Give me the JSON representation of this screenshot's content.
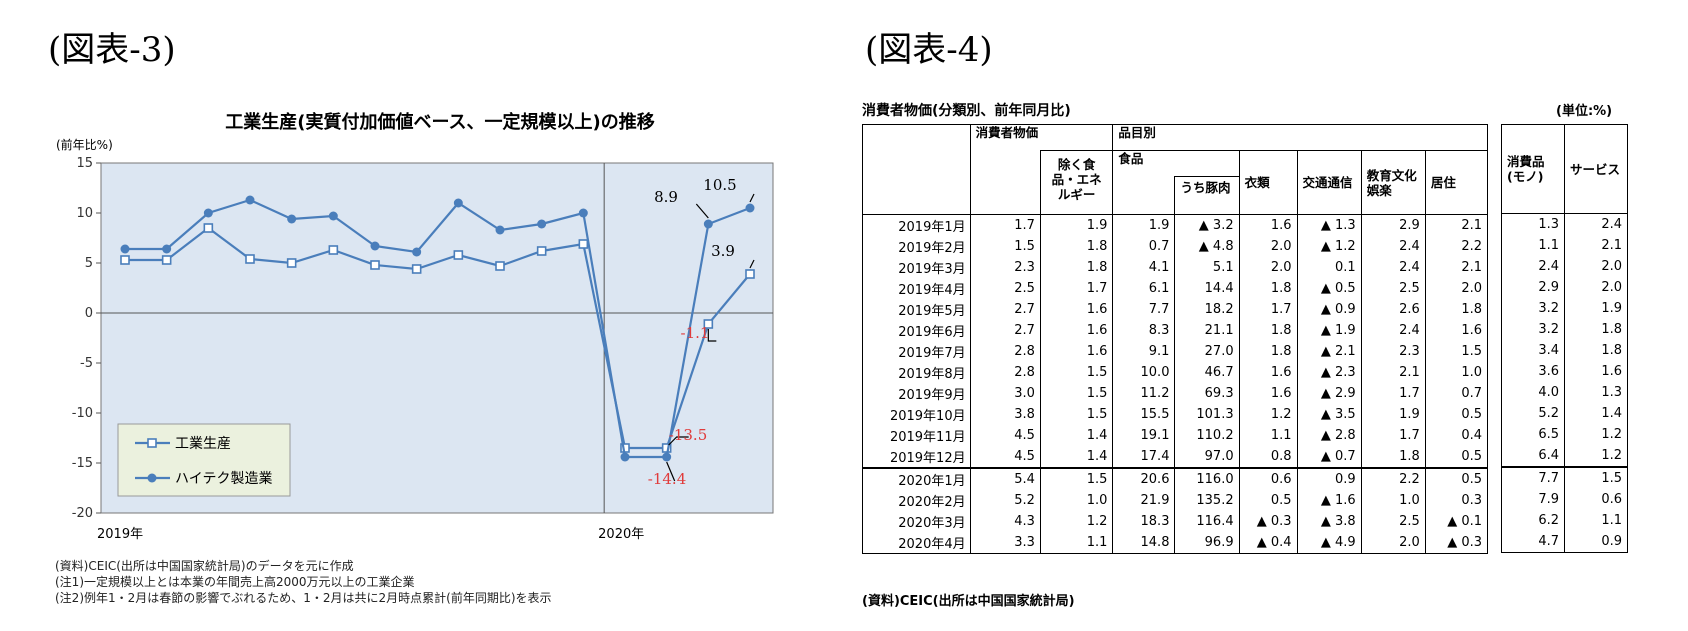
{
  "figure3": {
    "label": "(図表-3)",
    "title": "工業生産(実質付加価値ベース、一定規模以上)の推移",
    "ylabel": "(前年比%)",
    "x_year_labels": [
      "2019年",
      "2020年"
    ],
    "notes": [
      "(資料)CEIC(出所は中国国家統計局)のデータを元に作成",
      "(注1)一定規模以上とは本業の年間売上高2000万元以上の工業企業",
      "(注2)例年1・2月は春節の影響でぶれるため、1・2月は共に2月時点累計(前年同期比)を表示"
    ]
  },
  "chart_data": {
    "type": "line",
    "ylim": [
      -20,
      15
    ],
    "yticks": [
      "15",
      "10",
      "5",
      "0",
      "-5",
      "-10",
      "-15",
      "-20"
    ],
    "x": [
      "2019-01",
      "2019-02",
      "2019-03",
      "2019-04",
      "2019-05",
      "2019-06",
      "2019-07",
      "2019-08",
      "2019-09",
      "2019-10",
      "2019-11",
      "2019-12",
      "2020-01",
      "2020-02",
      "2020-03",
      "2020-04"
    ],
    "series": [
      {
        "name": "工業生産",
        "marker": "square-open",
        "color": "#4a7ebb",
        "values": [
          5.3,
          5.3,
          8.5,
          5.4,
          5.0,
          6.3,
          4.8,
          4.4,
          5.8,
          4.7,
          6.2,
          6.9,
          -13.5,
          -13.5,
          -1.1,
          3.9
        ]
      },
      {
        "name": "ハイテク製造業",
        "marker": "circle-filled",
        "color": "#4a7ebb",
        "values": [
          6.4,
          6.4,
          10.0,
          11.3,
          9.4,
          9.7,
          6.7,
          6.1,
          11.0,
          8.3,
          8.9,
          10.0,
          -14.4,
          -14.4,
          8.9,
          10.5
        ]
      }
    ],
    "annotations": [
      {
        "text": "10.5",
        "color": "#000000"
      },
      {
        "text": "8.9",
        "color": "#000000"
      },
      {
        "text": "3.9",
        "color": "#000000"
      },
      {
        "text": "-1.1",
        "color": "#e03c3c"
      },
      {
        "text": "-13.5",
        "color": "#e03c3c"
      },
      {
        "text": "-14.4",
        "color": "#e03c3c"
      }
    ],
    "grid": false,
    "legend": "bottom-left",
    "plot_bg": "#dce6f2"
  },
  "figure4": {
    "label": "(図表-4)",
    "caption": "消費者物価(分類別、前年同月比)",
    "unit": "(単位:%)",
    "source": "(資料)CEIC(出所は中国国家統計局)",
    "headers": {
      "cpi": "消費者物価",
      "ex_food_energy": "除く食品・エネルギー",
      "items": "品目別",
      "food": "食品",
      "pork": "うち豚肉",
      "clothing": "衣類",
      "transport": "交通通信",
      "education": "教育文化娯楽",
      "housing": "居住",
      "goods": "消費品(モノ)",
      "services": "サービス"
    },
    "rows": [
      [
        "2019年1月",
        "1.7",
        "1.9",
        "1.9",
        "▲ 3.2",
        "1.6",
        "▲ 1.3",
        "2.9",
        "2.1",
        "1.3",
        "2.4"
      ],
      [
        "2019年2月",
        "1.5",
        "1.8",
        "0.7",
        "▲ 4.8",
        "2.0",
        "▲ 1.2",
        "2.4",
        "2.2",
        "1.1",
        "2.1"
      ],
      [
        "2019年3月",
        "2.3",
        "1.8",
        "4.1",
        "5.1",
        "2.0",
        "0.1",
        "2.4",
        "2.1",
        "2.4",
        "2.0"
      ],
      [
        "2019年4月",
        "2.5",
        "1.7",
        "6.1",
        "14.4",
        "1.8",
        "▲ 0.5",
        "2.5",
        "2.0",
        "2.9",
        "2.0"
      ],
      [
        "2019年5月",
        "2.7",
        "1.6",
        "7.7",
        "18.2",
        "1.7",
        "▲ 0.9",
        "2.6",
        "1.8",
        "3.2",
        "1.9"
      ],
      [
        "2019年6月",
        "2.7",
        "1.6",
        "8.3",
        "21.1",
        "1.8",
        "▲ 1.9",
        "2.4",
        "1.6",
        "3.2",
        "1.8"
      ],
      [
        "2019年7月",
        "2.8",
        "1.6",
        "9.1",
        "27.0",
        "1.8",
        "▲ 2.1",
        "2.3",
        "1.5",
        "3.4",
        "1.8"
      ],
      [
        "2019年8月",
        "2.8",
        "1.5",
        "10.0",
        "46.7",
        "1.6",
        "▲ 2.3",
        "2.1",
        "1.0",
        "3.6",
        "1.6"
      ],
      [
        "2019年9月",
        "3.0",
        "1.5",
        "11.2",
        "69.3",
        "1.6",
        "▲ 2.9",
        "1.7",
        "0.7",
        "4.0",
        "1.3"
      ],
      [
        "2019年10月",
        "3.8",
        "1.5",
        "15.5",
        "101.3",
        "1.2",
        "▲ 3.5",
        "1.9",
        "0.5",
        "5.2",
        "1.4"
      ],
      [
        "2019年11月",
        "4.5",
        "1.4",
        "19.1",
        "110.2",
        "1.1",
        "▲ 2.8",
        "1.7",
        "0.4",
        "6.5",
        "1.2"
      ],
      [
        "2019年12月",
        "4.5",
        "1.4",
        "17.4",
        "97.0",
        "0.8",
        "▲ 0.7",
        "1.8",
        "0.5",
        "6.4",
        "1.2"
      ],
      [
        "2020年1月",
        "5.4",
        "1.5",
        "20.6",
        "116.0",
        "0.6",
        "0.9",
        "2.2",
        "0.5",
        "7.7",
        "1.5"
      ],
      [
        "2020年2月",
        "5.2",
        "1.0",
        "21.9",
        "135.2",
        "0.5",
        "▲ 1.6",
        "1.0",
        "0.3",
        "7.9",
        "0.6"
      ],
      [
        "2020年3月",
        "4.3",
        "1.2",
        "18.3",
        "116.4",
        "▲ 0.3",
        "▲ 3.8",
        "2.5",
        "▲ 0.1",
        "6.2",
        "1.1"
      ],
      [
        "2020年4月",
        "3.3",
        "1.1",
        "14.8",
        "96.9",
        "▲ 0.4",
        "▲ 4.9",
        "2.0",
        "▲ 0.3",
        "4.7",
        "0.9"
      ]
    ]
  }
}
